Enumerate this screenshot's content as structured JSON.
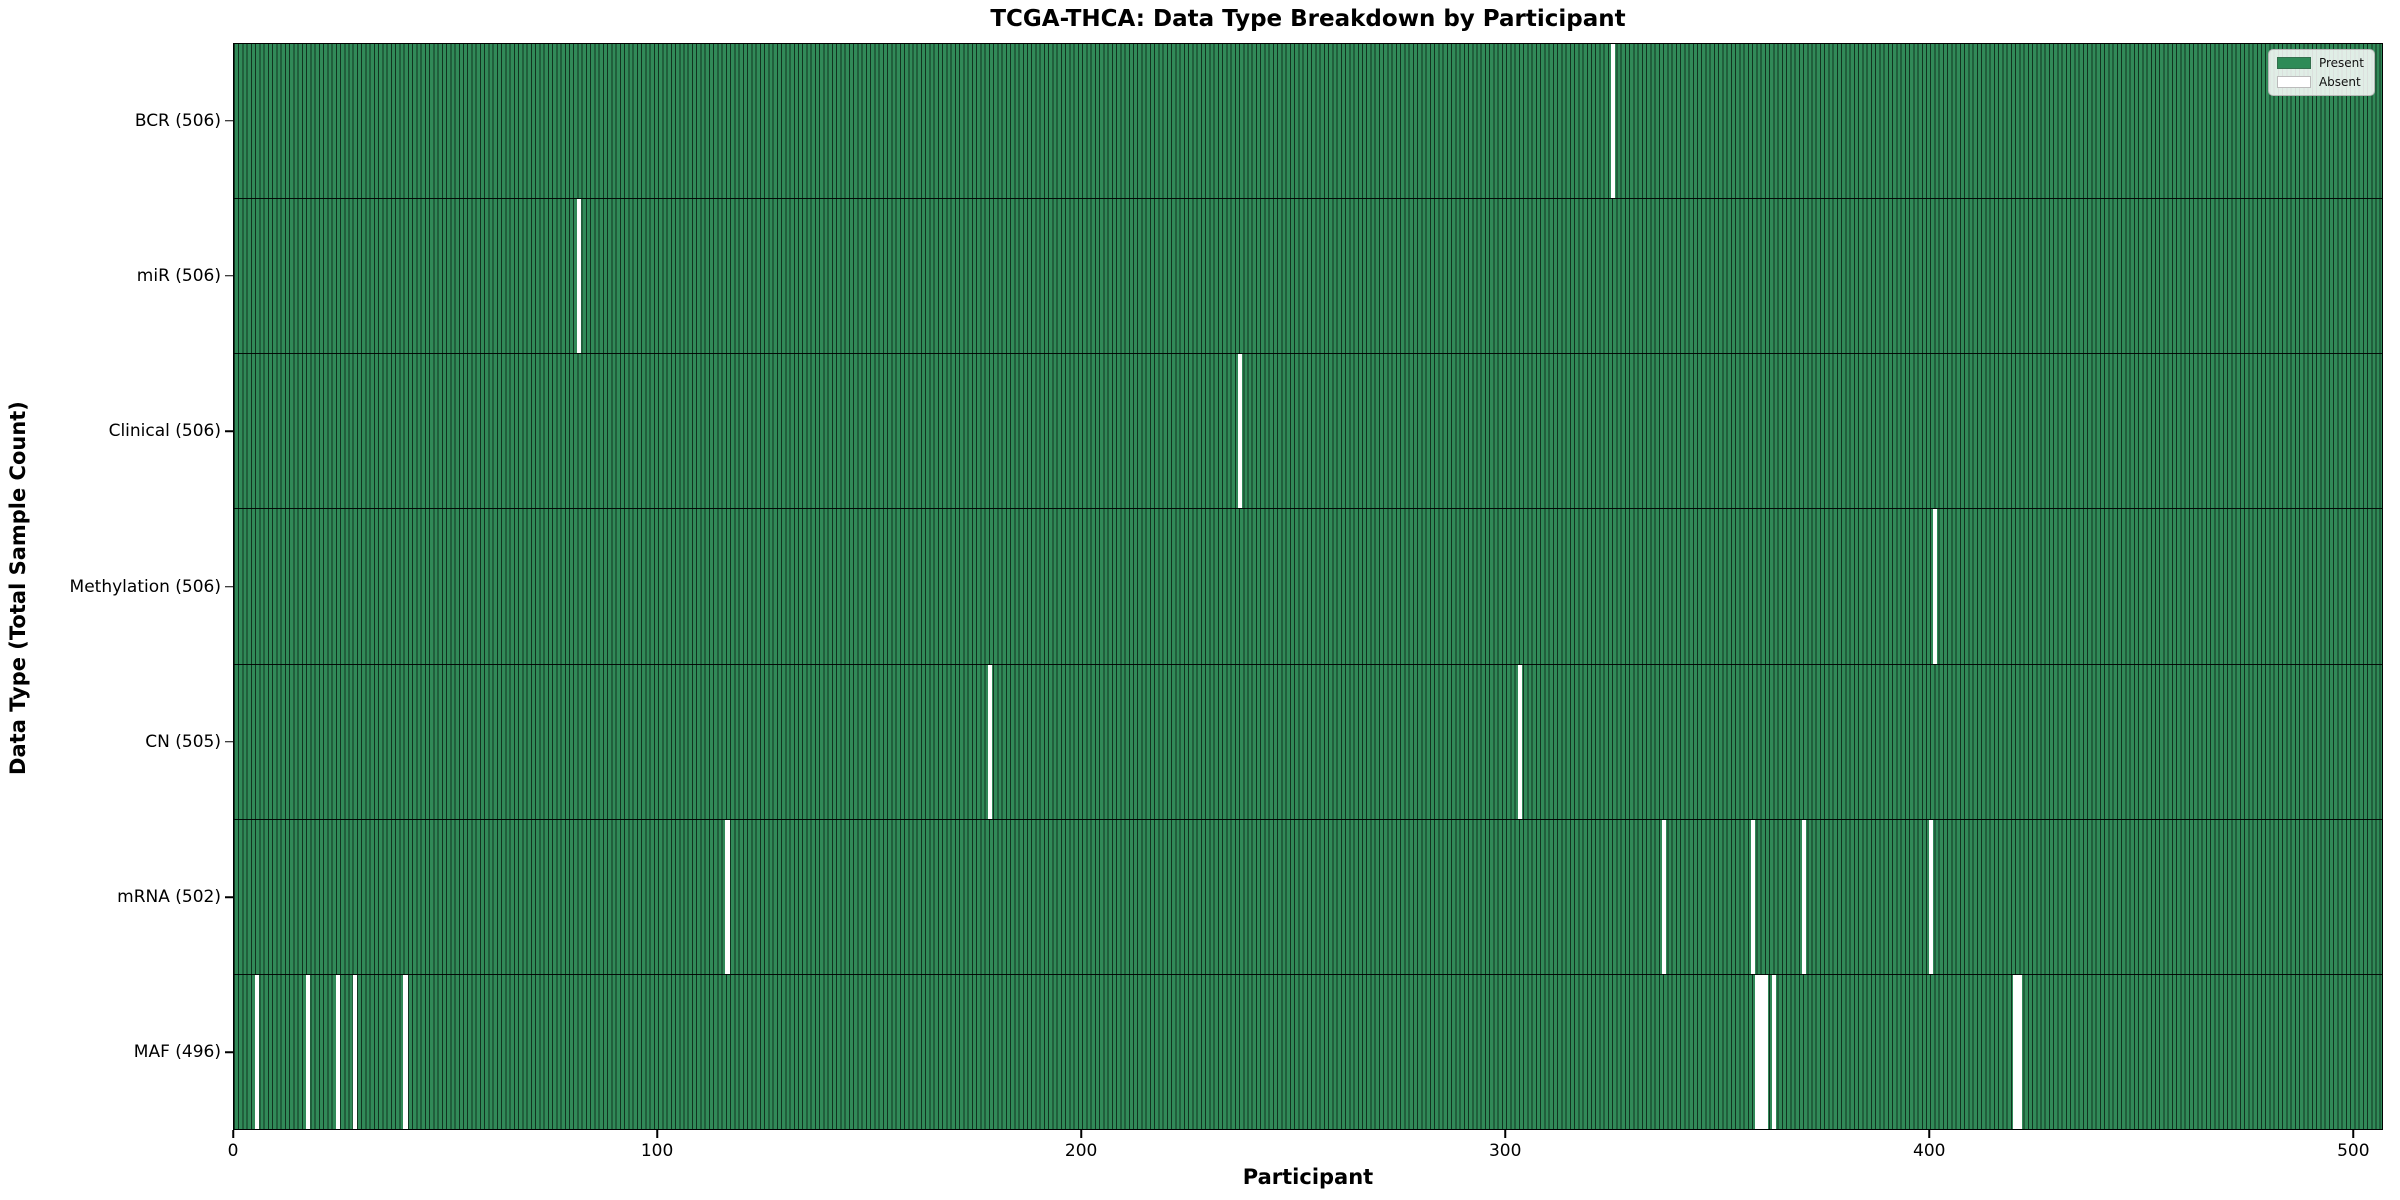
{
  "title": "TCGA-THCA: Data Type Breakdown by Participant",
  "axes": {
    "xlabel": "Participant",
    "ylabel": "Data Type (Total Sample Count)"
  },
  "legend": {
    "entries": [
      {
        "label": "Present",
        "color": "#2E8B57"
      },
      {
        "label": "Absent",
        "color": "#FFFFFF"
      }
    ]
  },
  "colors": {
    "present": "#2E8B57",
    "absent": "#FFFFFF",
    "bar_edge": "#0b1f14",
    "axis": "#000000",
    "background": "#FFFFFF"
  },
  "chart_data": {
    "type": "heatmap",
    "title": "TCGA-THCA: Data Type Breakdown by Participant",
    "xlabel": "Participant",
    "ylabel": "Data Type (Total Sample Count)",
    "grid": false,
    "legend_position": "upper right",
    "x_range": [
      0,
      507
    ],
    "x_ticks": [
      0,
      100,
      200,
      300,
      400,
      500
    ],
    "n_participants": 507,
    "cell_states": {
      "present": 1,
      "absent": 0
    },
    "rows": [
      {
        "label": "BCR (506)",
        "data_type": "BCR",
        "total_sample_count": 506,
        "absent_participants": [
          325
        ]
      },
      {
        "label": "miR (506)",
        "data_type": "miR",
        "total_sample_count": 506,
        "absent_participants": [
          81
        ]
      },
      {
        "label": "Clinical (506)",
        "data_type": "Clinical",
        "total_sample_count": 506,
        "absent_participants": [
          237
        ]
      },
      {
        "label": "Methylation (506)",
        "data_type": "Methylation",
        "total_sample_count": 506,
        "absent_participants": [
          401
        ]
      },
      {
        "label": "CN (505)",
        "data_type": "CN",
        "total_sample_count": 505,
        "absent_participants": [
          178,
          303
        ]
      },
      {
        "label": "mRNA (502)",
        "data_type": "mRNA",
        "total_sample_count": 502,
        "absent_participants": [
          116,
          337,
          358,
          370,
          400
        ]
      },
      {
        "label": "MAF (496)",
        "data_type": "MAF",
        "total_sample_count": 496,
        "absent_participants": [
          5,
          17,
          24,
          28,
          40,
          359,
          360,
          361,
          363,
          420,
          421
        ]
      }
    ]
  }
}
